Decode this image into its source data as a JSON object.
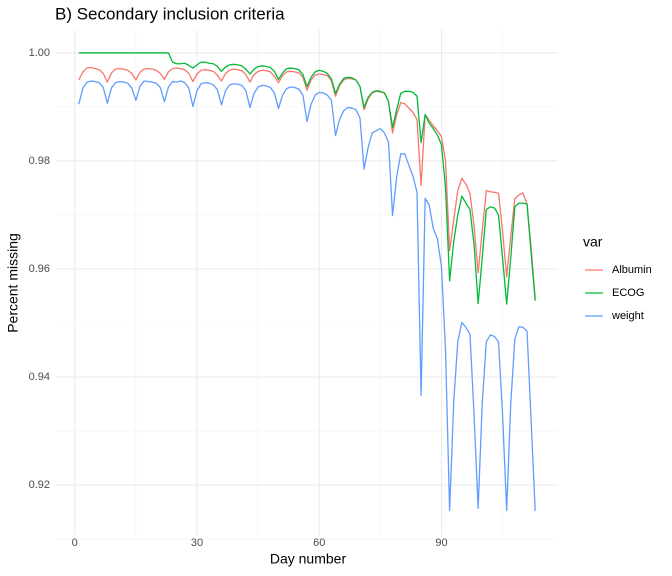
{
  "chart_data": {
    "type": "line",
    "title": "B) Secondary inclusion criteria",
    "x_label": "Day number",
    "y_label": "Percent missing",
    "legend_title": "var",
    "legend": "right",
    "grid": true,
    "xlim": [
      -4.6,
      118.6
    ],
    "xticks": [
      0,
      30,
      60,
      90
    ],
    "xminor": [
      15,
      45,
      75,
      105
    ],
    "ylim": [
      0.91075,
      1.00425
    ],
    "yticks": [
      {
        "value": 1.0,
        "label": "1.00"
      },
      {
        "value": 0.98,
        "label": "0.98"
      },
      {
        "value": 0.96,
        "label": "0.96"
      },
      {
        "value": 0.94,
        "label": "0.94"
      },
      {
        "value": 0.92,
        "label": "0.92"
      }
    ],
    "yminor": [
      0.91,
      0.93,
      0.95,
      0.97,
      0.99
    ],
    "x": [
      1,
      2,
      3,
      4,
      5,
      6,
      7,
      8,
      9,
      10,
      11,
      12,
      13,
      14,
      15,
      16,
      17,
      18,
      19,
      20,
      21,
      22,
      23,
      24,
      25,
      26,
      27,
      28,
      29,
      30,
      31,
      32,
      33,
      34,
      35,
      36,
      37,
      38,
      39,
      40,
      41,
      42,
      43,
      44,
      45,
      46,
      47,
      48,
      49,
      50,
      51,
      52,
      53,
      54,
      55,
      56,
      57,
      58,
      59,
      60,
      61,
      62,
      63,
      64,
      65,
      66,
      67,
      68,
      69,
      70,
      71,
      72,
      73,
      74,
      75,
      76,
      77,
      78,
      79,
      80,
      81,
      82,
      83,
      84,
      85,
      86,
      87,
      88,
      89,
      90,
      91,
      92,
      93,
      94,
      95,
      96,
      97,
      98,
      99,
      100,
      101,
      102,
      103,
      104,
      105,
      106,
      107,
      108,
      109,
      110,
      111,
      112,
      113
    ],
    "series": [
      {
        "name": "Albumin",
        "color": "#F8766D",
        "values": [
          0.995,
          0.9965,
          0.9972,
          0.9973,
          0.9971,
          0.9969,
          0.9962,
          0.9946,
          0.9963,
          0.997,
          0.9971,
          0.997,
          0.9968,
          0.9962,
          0.995,
          0.9964,
          0.997,
          0.9971,
          0.997,
          0.9968,
          0.9962,
          0.9951,
          0.9965,
          0.9971,
          0.9972,
          0.9971,
          0.9969,
          0.9962,
          0.9947,
          0.9961,
          0.9968,
          0.9969,
          0.9968,
          0.9966,
          0.9959,
          0.9948,
          0.9962,
          0.9968,
          0.997,
          0.9969,
          0.9967,
          0.996,
          0.9946,
          0.996,
          0.9966,
          0.9968,
          0.9967,
          0.9965,
          0.9957,
          0.9945,
          0.9958,
          0.9965,
          0.9966,
          0.9965,
          0.9963,
          0.9955,
          0.9931,
          0.995,
          0.9959,
          0.9961,
          0.996,
          0.9958,
          0.9948,
          0.992,
          0.994,
          0.995,
          0.9953,
          0.9952,
          0.995,
          0.9938,
          0.9895,
          0.9915,
          0.9926,
          0.9929,
          0.9928,
          0.9926,
          0.991,
          0.9852,
          0.9885,
          0.9908,
          0.9906,
          0.9898,
          0.989,
          0.9877,
          0.9755,
          0.9886,
          0.9875,
          0.9865,
          0.9856,
          0.9845,
          0.98,
          0.9634,
          0.969,
          0.9745,
          0.9768,
          0.9757,
          0.974,
          0.968,
          0.9593,
          0.967,
          0.9745,
          0.9743,
          0.9742,
          0.974,
          0.967,
          0.9585,
          0.966,
          0.973,
          0.9737,
          0.9741,
          0.972,
          0.964,
          0.9546
        ]
      },
      {
        "name": "ECOG",
        "color": "#00BA38",
        "values": [
          1,
          1,
          1,
          1,
          1,
          1,
          1,
          1,
          1,
          1,
          1,
          1,
          1,
          1,
          1,
          1,
          1,
          1,
          1,
          1,
          1,
          1,
          1,
          0.9983,
          0.998,
          0.998,
          0.9981,
          0.9977,
          0.9972,
          0.9978,
          0.9983,
          0.9983,
          0.9981,
          0.998,
          0.9975,
          0.9966,
          0.9974,
          0.9978,
          0.9979,
          0.9978,
          0.9976,
          0.997,
          0.9961,
          0.997,
          0.9975,
          0.9976,
          0.9975,
          0.9973,
          0.9966,
          0.9951,
          0.9963,
          0.9971,
          0.9972,
          0.9971,
          0.9969,
          0.996,
          0.9938,
          0.9955,
          0.9965,
          0.9968,
          0.9966,
          0.9962,
          0.9952,
          0.9925,
          0.9942,
          0.9953,
          0.9955,
          0.9954,
          0.995,
          0.9938,
          0.9899,
          0.9918,
          0.9927,
          0.993,
          0.9929,
          0.9926,
          0.991,
          0.9862,
          0.9895,
          0.9925,
          0.9929,
          0.9929,
          0.9927,
          0.992,
          0.9834,
          0.9886,
          0.987,
          0.986,
          0.9848,
          0.983,
          0.975,
          0.9578,
          0.965,
          0.97,
          0.9735,
          0.9722,
          0.971,
          0.9645,
          0.9536,
          0.962,
          0.971,
          0.9715,
          0.9713,
          0.97,
          0.962,
          0.9535,
          0.962,
          0.9715,
          0.9722,
          0.9722,
          0.972,
          0.963,
          0.9541
        ]
      },
      {
        "name": "weight",
        "color": "#619CFF",
        "values": [
          0.9905,
          0.9935,
          0.9946,
          0.9948,
          0.9947,
          0.9945,
          0.9936,
          0.9907,
          0.9935,
          0.9945,
          0.9947,
          0.9946,
          0.9944,
          0.9935,
          0.9912,
          0.9938,
          0.9948,
          0.9947,
          0.9946,
          0.9944,
          0.9936,
          0.991,
          0.9937,
          0.9947,
          0.9946,
          0.9948,
          0.9945,
          0.9935,
          0.9901,
          0.993,
          0.9943,
          0.9945,
          0.9944,
          0.9941,
          0.9932,
          0.9904,
          0.993,
          0.9941,
          0.9943,
          0.9942,
          0.994,
          0.993,
          0.9899,
          0.9925,
          0.9937,
          0.994,
          0.9939,
          0.9936,
          0.9926,
          0.9897,
          0.9922,
          0.9934,
          0.9937,
          0.9936,
          0.9933,
          0.9922,
          0.9873,
          0.9905,
          0.9922,
          0.9927,
          0.9926,
          0.9922,
          0.9912,
          0.9847,
          0.9877,
          0.9893,
          0.9899,
          0.9898,
          0.9895,
          0.988,
          0.9785,
          0.9825,
          0.9852,
          0.9856,
          0.986,
          0.9852,
          0.9835,
          0.9699,
          0.977,
          0.9813,
          0.9813,
          0.9792,
          0.9772,
          0.9742,
          0.9366,
          0.9731,
          0.9718,
          0.9675,
          0.9656,
          0.9604,
          0.945,
          0.9153,
          0.9353,
          0.9465,
          0.9501,
          0.9492,
          0.9479,
          0.933,
          0.9157,
          0.935,
          0.9465,
          0.9478,
          0.9475,
          0.9465,
          0.933,
          0.9153,
          0.935,
          0.947,
          0.9493,
          0.9492,
          0.9485,
          0.932,
          0.9152
        ]
      }
    ]
  }
}
